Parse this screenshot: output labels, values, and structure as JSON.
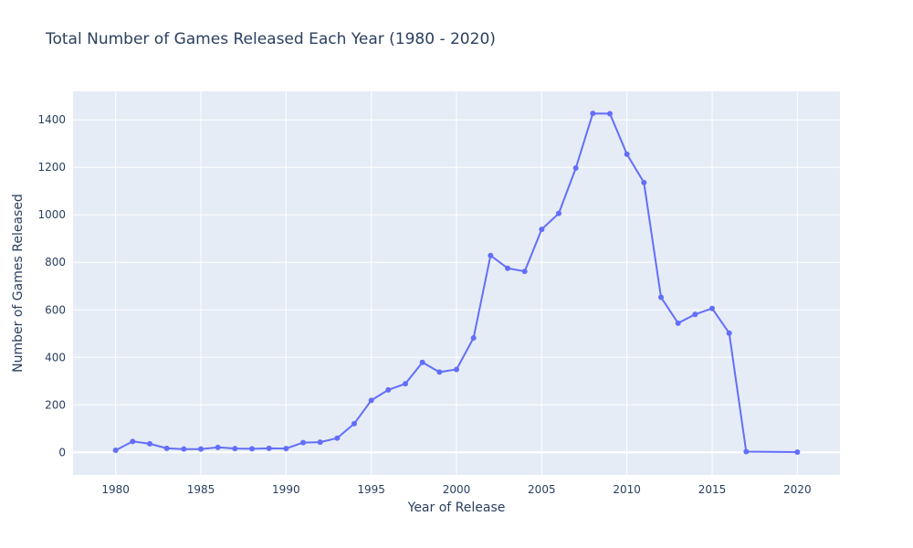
{
  "chart_data": {
    "type": "line",
    "title": "Total Number of Games Released Each Year (1980 - 2020)",
    "xlabel": "Year of Release",
    "ylabel": "Number of Games Released",
    "xlim": [
      1977.5,
      2022.5
    ],
    "ylim": [
      -95,
      1520
    ],
    "x_ticks": [
      1980,
      1985,
      1990,
      1995,
      2000,
      2005,
      2010,
      2015,
      2020
    ],
    "y_ticks": [
      0,
      200,
      400,
      600,
      800,
      1000,
      1200,
      1400
    ],
    "grid": true,
    "legend": "none",
    "series": [
      {
        "color": "#636efa",
        "x": [
          1980,
          1981,
          1982,
          1983,
          1984,
          1985,
          1986,
          1987,
          1988,
          1989,
          1990,
          1991,
          1992,
          1993,
          1994,
          1995,
          1996,
          1997,
          1998,
          1999,
          2000,
          2001,
          2002,
          2003,
          2004,
          2005,
          2006,
          2007,
          2008,
          2009,
          2010,
          2011,
          2012,
          2013,
          2014,
          2015,
          2016,
          2017,
          2020
        ],
        "y": [
          9,
          46,
          36,
          17,
          14,
          14,
          21,
          16,
          15,
          17,
          16,
          41,
          43,
          60,
          121,
          219,
          263,
          289,
          379,
          338,
          349,
          482,
          829,
          775,
          762,
          939,
          1006,
          1197,
          1427,
          1426,
          1255,
          1136,
          653,
          544,
          581,
          606,
          502,
          3,
          1
        ]
      }
    ]
  }
}
